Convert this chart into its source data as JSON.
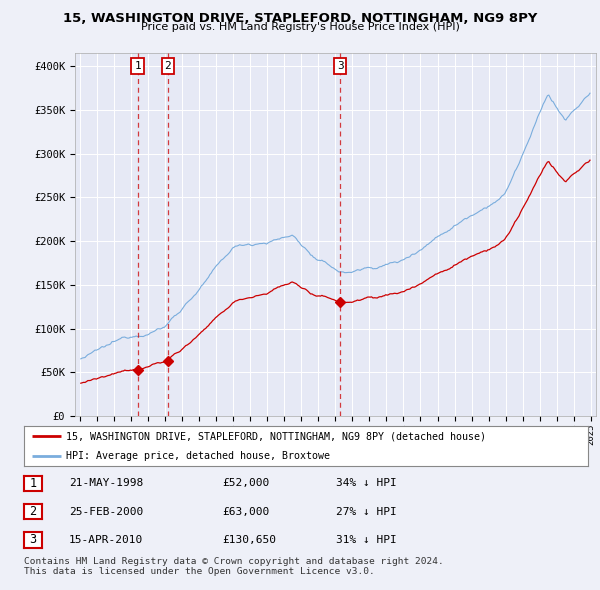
{
  "title_line1": "15, WASHINGTON DRIVE, STAPLEFORD, NOTTINGHAM, NG9 8PY",
  "title_line2": "Price paid vs. HM Land Registry's House Price Index (HPI)",
  "ylabel_ticks": [
    "£0",
    "£50K",
    "£100K",
    "£150K",
    "£200K",
    "£250K",
    "£300K",
    "£350K",
    "£400K"
  ],
  "ytick_values": [
    0,
    50000,
    100000,
    150000,
    200000,
    250000,
    300000,
    350000,
    400000
  ],
  "ylim": [
    0,
    415000
  ],
  "xlim_min": 1994.7,
  "xlim_max": 2025.3,
  "background_color": "#eef0f8",
  "plot_bg_color": "#e6e9f5",
  "red_line_color": "#cc0000",
  "blue_line_color": "#7aaddd",
  "sale_points": [
    {
      "date_num": 1998.38,
      "price": 52000,
      "label": "1"
    },
    {
      "date_num": 2000.15,
      "price": 63000,
      "label": "2"
    },
    {
      "date_num": 2010.29,
      "price": 130650,
      "label": "3"
    }
  ],
  "legend_entries": [
    {
      "color": "#cc0000",
      "text": "15, WASHINGTON DRIVE, STAPLEFORD, NOTTINGHAM, NG9 8PY (detached house)"
    },
    {
      "color": "#7aaddd",
      "text": "HPI: Average price, detached house, Broxtowe"
    }
  ],
  "table_rows": [
    {
      "label": "1",
      "date": "21-MAY-1998",
      "price": "£52,000",
      "hpi": "34% ↓ HPI"
    },
    {
      "label": "2",
      "date": "25-FEB-2000",
      "price": "£63,000",
      "hpi": "27% ↓ HPI"
    },
    {
      "label": "3",
      "date": "15-APR-2010",
      "price": "£130,650",
      "hpi": "31% ↓ HPI"
    }
  ],
  "footer_text": "Contains HM Land Registry data © Crown copyright and database right 2024.\nThis data is licensed under the Open Government Licence v3.0.",
  "xtick_years": [
    1995,
    1996,
    1997,
    1998,
    1999,
    2000,
    2001,
    2002,
    2003,
    2004,
    2005,
    2006,
    2007,
    2008,
    2009,
    2010,
    2011,
    2012,
    2013,
    2014,
    2015,
    2016,
    2017,
    2018,
    2019,
    2020,
    2021,
    2022,
    2023,
    2024,
    2025
  ]
}
